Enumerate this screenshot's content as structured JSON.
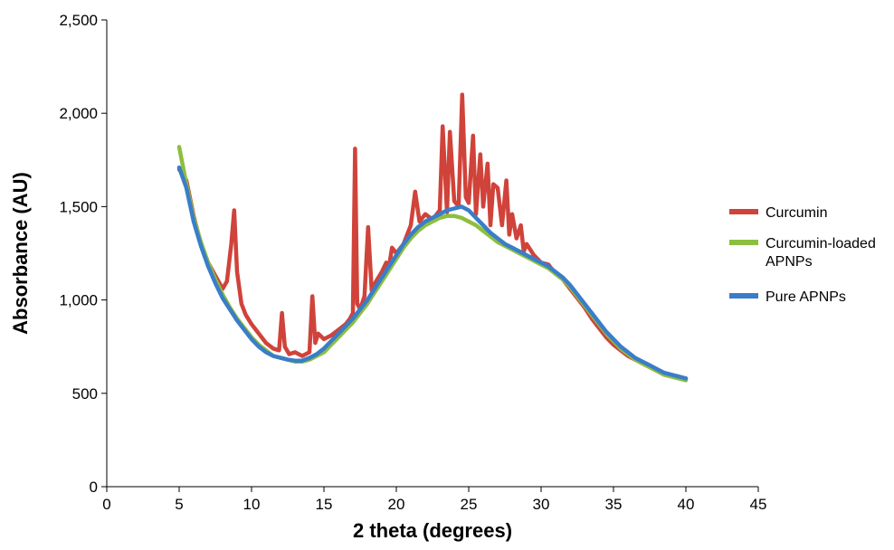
{
  "chart_data": {
    "type": "line",
    "xlabel": "2 theta (degrees)",
    "ylabel": "Absorbance (AU)",
    "xlim": [
      0,
      45
    ],
    "ylim": [
      0,
      2500
    ],
    "x_ticks": [
      0,
      5,
      10,
      15,
      20,
      25,
      30,
      35,
      40,
      45
    ],
    "x_tick_labels": [
      "0",
      "5",
      "10",
      "15",
      "20",
      "25",
      "30",
      "35",
      "40",
      "45"
    ],
    "y_ticks": [
      0,
      500,
      1000,
      1500,
      2000,
      2500
    ],
    "y_tick_labels": [
      "0",
      "500",
      "1,000",
      "1,500",
      "2,000",
      "2,500"
    ],
    "grid": false,
    "legend_position": "right",
    "series": [
      {
        "name": "Curcumin",
        "color": "#d0433a",
        "x": [
          5,
          5.5,
          6,
          6.5,
          7,
          7.5,
          8,
          8.3,
          8.6,
          8.8,
          9,
          9.3,
          9.6,
          10,
          10.5,
          11,
          11.5,
          11.9,
          12.1,
          12.3,
          12.6,
          13,
          13.5,
          14,
          14.2,
          14.4,
          14.6,
          15,
          15.5,
          16,
          16.5,
          16.8,
          17,
          17.15,
          17.3,
          17.5,
          17.8,
          18.05,
          18.3,
          18.6,
          19,
          19.3,
          19.5,
          19.7,
          20,
          20.5,
          21,
          21.3,
          21.6,
          22,
          22.5,
          23,
          23.2,
          23.5,
          23.7,
          24,
          24.3,
          24.55,
          24.8,
          25,
          25.3,
          25.5,
          25.8,
          26,
          26.3,
          26.5,
          26.7,
          27,
          27.3,
          27.6,
          27.8,
          28,
          28.3,
          28.6,
          28.8,
          29,
          29.5,
          30,
          30.5,
          31,
          31.5,
          32,
          32.5,
          33,
          33.5,
          34,
          34.5,
          35,
          35.5,
          36,
          36.5,
          37,
          37.5,
          38,
          38.5,
          39,
          39.5,
          40
        ],
        "values": [
          1700,
          1640,
          1450,
          1300,
          1200,
          1130,
          1060,
          1100,
          1300,
          1480,
          1150,
          980,
          920,
          870,
          820,
          770,
          740,
          730,
          930,
          750,
          710,
          720,
          700,
          720,
          1020,
          770,
          820,
          790,
          810,
          840,
          870,
          900,
          930,
          1810,
          980,
          950,
          1020,
          1390,
          1050,
          1100,
          1150,
          1200,
          1180,
          1280,
          1250,
          1300,
          1400,
          1580,
          1420,
          1460,
          1430,
          1480,
          1930,
          1470,
          1900,
          1530,
          1500,
          2100,
          1550,
          1520,
          1880,
          1460,
          1780,
          1500,
          1730,
          1400,
          1620,
          1600,
          1400,
          1640,
          1350,
          1460,
          1330,
          1400,
          1260,
          1300,
          1240,
          1200,
          1190,
          1140,
          1110,
          1060,
          1010,
          960,
          900,
          850,
          800,
          760,
          730,
          700,
          680,
          660,
          640,
          620,
          600,
          590,
          580,
          580
        ]
      },
      {
        "name": "Curcumin-loaded APNPs",
        "color": "#8cbf3f",
        "x": [
          5,
          5.5,
          6,
          6.5,
          7,
          7.5,
          8,
          8.5,
          9,
          9.5,
          10,
          10.5,
          11,
          11.5,
          12,
          12.5,
          13,
          13.5,
          14,
          14.5,
          15,
          15.5,
          16,
          16.5,
          17,
          17.5,
          18,
          18.5,
          19,
          19.5,
          20,
          20.5,
          21,
          21.5,
          22,
          22.5,
          23,
          23.5,
          24,
          24.5,
          25,
          25.5,
          26,
          26.5,
          27,
          27.5,
          28,
          28.5,
          29,
          29.5,
          30,
          30.5,
          31,
          31.5,
          32,
          32.5,
          33,
          33.5,
          34,
          34.5,
          35,
          35.5,
          36,
          36.5,
          37,
          37.5,
          38,
          38.5,
          39,
          39.5,
          40
        ],
        "values": [
          1820,
          1620,
          1440,
          1310,
          1200,
          1110,
          1030,
          960,
          900,
          850,
          800,
          760,
          730,
          700,
          690,
          680,
          670,
          670,
          680,
          700,
          720,
          760,
          800,
          840,
          880,
          930,
          980,
          1040,
          1100,
          1160,
          1220,
          1280,
          1330,
          1370,
          1400,
          1420,
          1440,
          1450,
          1450,
          1440,
          1420,
          1400,
          1370,
          1340,
          1310,
          1290,
          1270,
          1250,
          1230,
          1210,
          1190,
          1170,
          1140,
          1110,
          1070,
          1020,
          970,
          920,
          870,
          820,
          780,
          740,
          710,
          680,
          660,
          640,
          620,
          600,
          590,
          580,
          570
        ]
      },
      {
        "name": "Pure APNPs",
        "color": "#3a7dc9",
        "x": [
          5,
          5.5,
          6,
          6.5,
          7,
          7.5,
          8,
          8.5,
          9,
          9.5,
          10,
          10.5,
          11,
          11.5,
          12,
          12.5,
          13,
          13.5,
          14,
          14.5,
          15,
          15.5,
          16,
          16.5,
          17,
          17.5,
          18,
          18.5,
          19,
          19.5,
          20,
          20.5,
          21,
          21.5,
          22,
          22.5,
          23,
          23.5,
          24,
          24.5,
          25,
          25.5,
          26,
          26.5,
          27,
          27.5,
          28,
          28.5,
          29,
          29.5,
          30,
          30.5,
          31,
          31.5,
          32,
          32.5,
          33,
          33.5,
          34,
          34.5,
          35,
          35.5,
          36,
          36.5,
          37,
          37.5,
          38,
          38.5,
          39,
          39.5,
          40
        ],
        "values": [
          1710,
          1600,
          1420,
          1290,
          1180,
          1090,
          1010,
          950,
          890,
          840,
          790,
          750,
          720,
          700,
          690,
          680,
          675,
          675,
          690,
          710,
          740,
          780,
          820,
          860,
          900,
          950,
          1000,
          1060,
          1120,
          1180,
          1240,
          1300,
          1350,
          1390,
          1420,
          1440,
          1460,
          1480,
          1490,
          1500,
          1480,
          1440,
          1400,
          1360,
          1330,
          1300,
          1280,
          1260,
          1240,
          1220,
          1200,
          1180,
          1150,
          1120,
          1080,
          1030,
          980,
          930,
          880,
          830,
          790,
          750,
          720,
          690,
          670,
          650,
          630,
          610,
          600,
          590,
          580
        ]
      }
    ]
  }
}
